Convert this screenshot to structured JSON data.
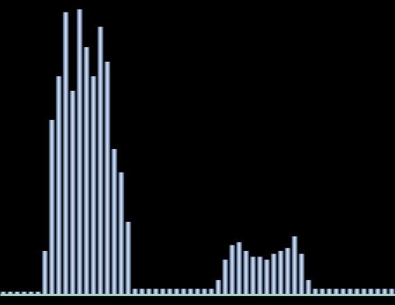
{
  "chart_data": {
    "type": "bar",
    "tick_labels": false,
    "color": "#a9c3ee",
    "categories": [
      null,
      null,
      null,
      null,
      null,
      null,
      null,
      null,
      null,
      null,
      null,
      null,
      null,
      null,
      null,
      null,
      null,
      null,
      null,
      null,
      null,
      null,
      null,
      null,
      null,
      null,
      null,
      null,
      null,
      null,
      null,
      null,
      null,
      null,
      null,
      null,
      null,
      null,
      null,
      null,
      null,
      null,
      null,
      null,
      null,
      null,
      null,
      null,
      null,
      null,
      null,
      null,
      null,
      null,
      null,
      null,
      null
    ],
    "values": [
      1,
      1,
      1,
      1,
      1,
      1,
      15,
      60,
      75,
      97,
      70,
      98,
      85,
      75,
      92,
      80,
      50,
      42,
      25,
      2,
      2,
      2,
      2,
      2,
      2,
      2,
      2,
      2,
      2,
      2,
      2,
      5,
      12,
      17,
      18,
      15,
      13,
      13,
      12,
      14,
      15,
      16,
      20,
      14,
      5,
      2,
      2,
      2,
      2,
      2,
      2,
      2,
      2,
      2,
      2,
      2,
      2
    ],
    "ylim": [
      0,
      100
    ]
  }
}
